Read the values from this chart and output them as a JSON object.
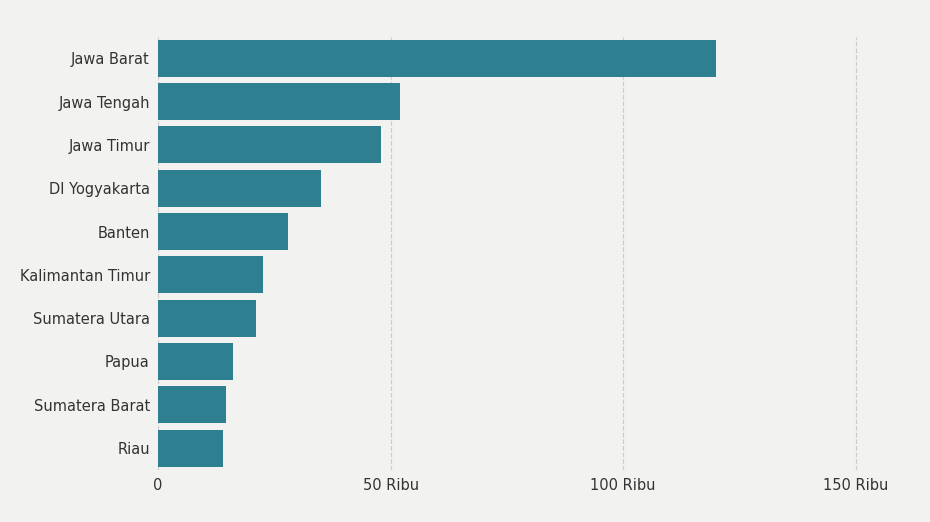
{
  "provinces": [
    "Riau",
    "Sumatera Barat",
    "Papua",
    "Sumatera Utara",
    "Kalimantan Timur",
    "Banten",
    "DI Yogyakarta",
    "Jawa Timur",
    "Jawa Tengah",
    "Jawa Barat"
  ],
  "values": [
    14000,
    14500,
    16000,
    21000,
    22500,
    28000,
    35000,
    48000,
    52000,
    120000
  ],
  "bar_color": "#2e7f8f",
  "background_color": "#f2f2f0",
  "plot_bg_color": "#f2f2f0",
  "xlim": [
    0,
    160000
  ],
  "xticks": [
    0,
    50000,
    100000,
    150000
  ],
  "xtick_labels": [
    "0",
    "50 Ribu",
    "100 Ribu",
    "150 Ribu"
  ],
  "tick_fontsize": 10.5,
  "bar_height": 0.85
}
